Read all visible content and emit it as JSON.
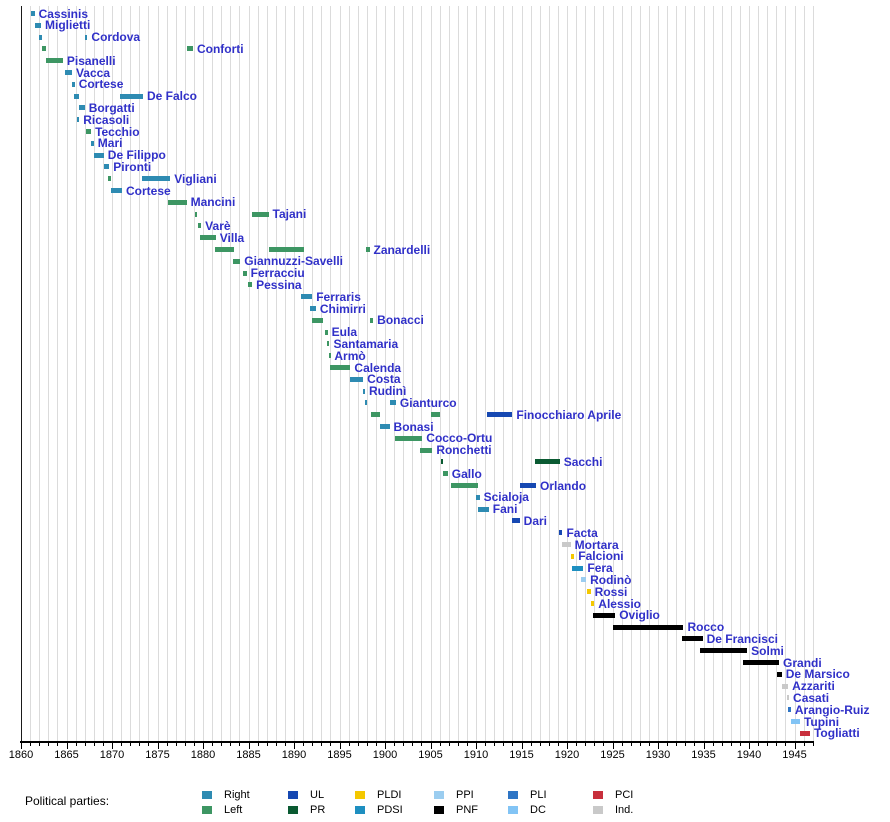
{
  "legend": {
    "title": "Political parties:",
    "columns": [
      [
        {
          "label": "Right",
          "party": "Right"
        },
        {
          "label": "Left",
          "party": "Left"
        }
      ],
      [
        {
          "label": "UL",
          "party": "UL"
        },
        {
          "label": "PR",
          "party": "PR"
        }
      ],
      [
        {
          "label": "PLDI",
          "party": "PLDI"
        },
        {
          "label": "PDSI",
          "party": "PDSI"
        }
      ],
      [
        {
          "label": "PPI",
          "party": "PPI"
        },
        {
          "label": "PNF",
          "party": "PNF"
        }
      ],
      [
        {
          "label": "PLI",
          "party": "PLI"
        },
        {
          "label": "DC",
          "party": "DC"
        }
      ],
      [
        {
          "label": "PCI",
          "party": "PCI"
        },
        {
          "label": "Ind.",
          "party": "Ind."
        }
      ]
    ]
  },
  "chart_data": {
    "type": "timeline",
    "title": "",
    "x_axis": {
      "min": 1860,
      "max": 1947,
      "gridline_interval": 1,
      "label_interval": 5,
      "tick_labels": [
        "1860",
        "1865",
        "1870",
        "1875",
        "1880",
        "1885",
        "1890",
        "1895",
        "1900",
        "1905",
        "1910",
        "1915",
        "1920",
        "1925",
        "1930",
        "1935",
        "1940",
        "1945"
      ]
    },
    "grid": true,
    "parties": {
      "Right": "#2e8bb2",
      "Left": "#3d9663",
      "UL": "#1648b2",
      "PR": "#0a5a32",
      "PLDI": "#f4c800",
      "PDSI": "#1e8fc0",
      "PPI": "#9bcdf0",
      "PNF": "#000000",
      "PLI": "#2e75c5",
      "DC": "#82c4f5",
      "PCI": "#c82f3c",
      "Ind.": "#c9c9c9"
    },
    "ministers": [
      {
        "name": "Cassinis",
        "terms": [
          {
            "start": 1861.1,
            "end": 1861.5,
            "party": "Right"
          }
        ]
      },
      {
        "name": "Miglietti",
        "terms": [
          {
            "start": 1861.5,
            "end": 1862.2,
            "party": "Right"
          }
        ]
      },
      {
        "name": "Cordova",
        "terms": [
          {
            "start": 1862.0,
            "end": 1862.3,
            "party": "Right"
          },
          {
            "start": 1867.0,
            "end": 1867.3,
            "party": "Right"
          }
        ]
      },
      {
        "name": "Conforti",
        "terms": [
          {
            "start": 1862.3,
            "end": 1862.8,
            "party": "Left"
          },
          {
            "start": 1878.2,
            "end": 1878.9,
            "party": "Left"
          }
        ]
      },
      {
        "name": "Pisanelli",
        "terms": [
          {
            "start": 1862.8,
            "end": 1864.6,
            "party": "Left"
          }
        ]
      },
      {
        "name": "Vacca",
        "terms": [
          {
            "start": 1864.8,
            "end": 1865.6,
            "party": "Right"
          }
        ]
      },
      {
        "name": "Cortese",
        "terms": [
          {
            "start": 1865.6,
            "end": 1865.9,
            "party": "Right"
          }
        ]
      },
      {
        "name": "De Falco",
        "terms": [
          {
            "start": 1865.8,
            "end": 1866.4,
            "party": "Right"
          },
          {
            "start": 1870.9,
            "end": 1873.4,
            "party": "Right"
          }
        ]
      },
      {
        "name": "Borgatti",
        "terms": [
          {
            "start": 1866.4,
            "end": 1867.0,
            "party": "Right"
          }
        ]
      },
      {
        "name": "Ricasoli",
        "terms": [
          {
            "start": 1866.2,
            "end": 1866.4,
            "party": "Right"
          }
        ]
      },
      {
        "name": "Tecchio",
        "terms": [
          {
            "start": 1867.1,
            "end": 1867.7,
            "party": "Left"
          }
        ]
      },
      {
        "name": "Mari",
        "terms": [
          {
            "start": 1867.7,
            "end": 1868.0,
            "party": "Right"
          }
        ]
      },
      {
        "name": "De Filippo",
        "terms": [
          {
            "start": 1868.0,
            "end": 1869.1,
            "party": "Right"
          }
        ]
      },
      {
        "name": "Pironti",
        "terms": [
          {
            "start": 1869.1,
            "end": 1869.7,
            "party": "Right"
          }
        ]
      },
      {
        "name": "Vigliani",
        "terms": [
          {
            "start": 1869.6,
            "end": 1869.9,
            "party": "Left"
          },
          {
            "start": 1873.3,
            "end": 1876.4,
            "party": "Right"
          }
        ]
      },
      {
        "name": "Cortese",
        "terms": [
          {
            "start": 1869.9,
            "end": 1871.1,
            "party": "Right"
          }
        ]
      },
      {
        "name": "Mancini",
        "terms": [
          {
            "start": 1876.2,
            "end": 1878.2,
            "party": "Left"
          }
        ]
      },
      {
        "name": "Tajani",
        "terms": [
          {
            "start": 1879.1,
            "end": 1879.3,
            "party": "Left"
          },
          {
            "start": 1885.4,
            "end": 1887.2,
            "party": "Left"
          }
        ]
      },
      {
        "name": "Varè",
        "terms": [
          {
            "start": 1879.5,
            "end": 1879.8,
            "party": "Left"
          }
        ]
      },
      {
        "name": "Villa",
        "terms": [
          {
            "start": 1879.7,
            "end": 1881.4,
            "party": "Left"
          }
        ]
      },
      {
        "name": "Zanardelli",
        "terms": [
          {
            "start": 1881.3,
            "end": 1883.4,
            "party": "Left"
          },
          {
            "start": 1887.2,
            "end": 1891.1,
            "party": "Left"
          },
          {
            "start": 1897.9,
            "end": 1898.3,
            "party": "Left"
          }
        ]
      },
      {
        "name": "Giannuzzi-Savelli",
        "terms": [
          {
            "start": 1883.3,
            "end": 1884.1,
            "party": "Left"
          }
        ]
      },
      {
        "name": "Ferracciu",
        "terms": [
          {
            "start": 1884.4,
            "end": 1884.8,
            "party": "Left"
          }
        ]
      },
      {
        "name": "Pessina",
        "terms": [
          {
            "start": 1884.9,
            "end": 1885.4,
            "party": "Left"
          }
        ]
      },
      {
        "name": "Ferraris",
        "terms": [
          {
            "start": 1890.8,
            "end": 1892.0,
            "party": "Right"
          }
        ]
      },
      {
        "name": "Chimirri",
        "terms": [
          {
            "start": 1891.8,
            "end": 1892.4,
            "party": "Right"
          }
        ]
      },
      {
        "name": "Bonacci",
        "terms": [
          {
            "start": 1892.0,
            "end": 1893.2,
            "party": "Left"
          },
          {
            "start": 1898.4,
            "end": 1898.7,
            "party": "Left"
          }
        ]
      },
      {
        "name": "Eula",
        "terms": [
          {
            "start": 1893.4,
            "end": 1893.7,
            "party": "Left"
          }
        ]
      },
      {
        "name": "Santamaria",
        "terms": [
          {
            "start": 1893.6,
            "end": 1893.9,
            "party": "Left"
          }
        ]
      },
      {
        "name": "Armò",
        "terms": [
          {
            "start": 1893.8,
            "end": 1894.0,
            "party": "Left"
          }
        ]
      },
      {
        "name": "Calenda",
        "terms": [
          {
            "start": 1894.0,
            "end": 1896.2,
            "party": "Left"
          }
        ]
      },
      {
        "name": "Costa",
        "terms": [
          {
            "start": 1896.2,
            "end": 1897.6,
            "party": "Right"
          }
        ]
      },
      {
        "name": "Rudinì",
        "terms": [
          {
            "start": 1897.6,
            "end": 1897.8,
            "party": "Right"
          }
        ]
      },
      {
        "name": "Gianturco",
        "terms": [
          {
            "start": 1897.8,
            "end": 1898.0,
            "party": "Right"
          },
          {
            "start": 1900.5,
            "end": 1901.2,
            "party": "Right"
          }
        ]
      },
      {
        "name": "Finocchiaro Aprile",
        "terms": [
          {
            "start": 1898.5,
            "end": 1899.5,
            "party": "Left"
          },
          {
            "start": 1905.0,
            "end": 1906.0,
            "party": "Left"
          },
          {
            "start": 1911.2,
            "end": 1914.0,
            "party": "UL"
          }
        ]
      },
      {
        "name": "Bonasi",
        "terms": [
          {
            "start": 1899.4,
            "end": 1900.5,
            "party": "Right"
          }
        ]
      },
      {
        "name": "Cocco-Ortu",
        "terms": [
          {
            "start": 1901.1,
            "end": 1904.1,
            "party": "Left"
          }
        ]
      },
      {
        "name": "Ronchetti",
        "terms": [
          {
            "start": 1903.8,
            "end": 1905.2,
            "party": "Left"
          }
        ]
      },
      {
        "name": "Sacchi",
        "terms": [
          {
            "start": 1906.1,
            "end": 1906.3,
            "party": "PR"
          },
          {
            "start": 1916.5,
            "end": 1919.2,
            "party": "PR"
          }
        ]
      },
      {
        "name": "Gallo",
        "terms": [
          {
            "start": 1906.4,
            "end": 1906.9,
            "party": "Left"
          }
        ]
      },
      {
        "name": "Orlando",
        "terms": [
          {
            "start": 1907.2,
            "end": 1910.2,
            "party": "Left"
          },
          {
            "start": 1914.8,
            "end": 1916.6,
            "party": "UL"
          }
        ]
      },
      {
        "name": "Scialoja",
        "terms": [
          {
            "start": 1910.0,
            "end": 1910.4,
            "party": "Right"
          }
        ]
      },
      {
        "name": "Fani",
        "terms": [
          {
            "start": 1910.2,
            "end": 1911.4,
            "party": "Right"
          }
        ]
      },
      {
        "name": "Dari",
        "terms": [
          {
            "start": 1914.0,
            "end": 1914.8,
            "party": "UL"
          }
        ]
      },
      {
        "name": "Facta",
        "terms": [
          {
            "start": 1919.1,
            "end": 1919.5,
            "party": "UL"
          }
        ]
      },
      {
        "name": "Mortara",
        "terms": [
          {
            "start": 1919.5,
            "end": 1920.4,
            "party": "Ind."
          }
        ]
      },
      {
        "name": "Falcioni",
        "terms": [
          {
            "start": 1920.4,
            "end": 1920.8,
            "party": "PLDI"
          }
        ]
      },
      {
        "name": "Fera",
        "terms": [
          {
            "start": 1920.6,
            "end": 1921.8,
            "party": "PDSI"
          }
        ]
      },
      {
        "name": "Rodinò",
        "terms": [
          {
            "start": 1921.5,
            "end": 1922.1,
            "party": "PPI"
          }
        ]
      },
      {
        "name": "Rossi",
        "terms": [
          {
            "start": 1922.2,
            "end": 1922.6,
            "party": "PLDI"
          }
        ]
      },
      {
        "name": "Alessio",
        "terms": [
          {
            "start": 1922.6,
            "end": 1923.0,
            "party": "PLDI"
          }
        ]
      },
      {
        "name": "Oviglio",
        "terms": [
          {
            "start": 1922.9,
            "end": 1925.3,
            "party": "PNF"
          }
        ]
      },
      {
        "name": "Rocco",
        "terms": [
          {
            "start": 1925.1,
            "end": 1932.8,
            "party": "PNF"
          }
        ]
      },
      {
        "name": "De Francisci",
        "terms": [
          {
            "start": 1932.6,
            "end": 1934.9,
            "party": "PNF"
          }
        ]
      },
      {
        "name": "Solmi",
        "terms": [
          {
            "start": 1934.6,
            "end": 1939.8,
            "party": "PNF"
          }
        ]
      },
      {
        "name": "Grandi",
        "terms": [
          {
            "start": 1939.3,
            "end": 1943.3,
            "party": "PNF"
          }
        ]
      },
      {
        "name": "De Marsico",
        "terms": [
          {
            "start": 1943.1,
            "end": 1943.6,
            "party": "PNF"
          }
        ]
      },
      {
        "name": "Azzariti",
        "terms": [
          {
            "start": 1943.6,
            "end": 1944.3,
            "party": "Ind."
          }
        ]
      },
      {
        "name": "Casati",
        "terms": [
          {
            "start": 1944.2,
            "end": 1944.4,
            "party": "Ind."
          }
        ]
      },
      {
        "name": "Arangio-Ruiz",
        "terms": [
          {
            "start": 1944.3,
            "end": 1944.6,
            "party": "PLI"
          }
        ]
      },
      {
        "name": "Tupini",
        "terms": [
          {
            "start": 1944.6,
            "end": 1945.6,
            "party": "DC"
          }
        ]
      },
      {
        "name": "Togliatti",
        "terms": [
          {
            "start": 1945.6,
            "end": 1946.7,
            "party": "PCI"
          }
        ]
      }
    ]
  }
}
